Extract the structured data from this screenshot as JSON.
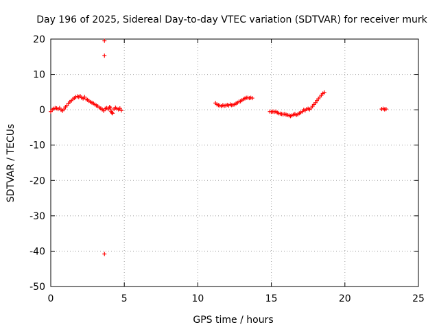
{
  "chart_data": {
    "type": "scatter",
    "title": "Day 196 of 2025, Sidereal Day-to-day VTEC variation (SDTVAR) for receiver murk",
    "xlabel": "GPS time / hours",
    "ylabel": "SDTVAR / TECUs",
    "xlim": [
      0,
      25
    ],
    "ylim": [
      -50,
      20
    ],
    "xticks": [
      0,
      5,
      10,
      15,
      20,
      25
    ],
    "yticks": [
      -50,
      -40,
      -30,
      -20,
      -10,
      0,
      10,
      20
    ],
    "grid": true,
    "marker": "+",
    "series": [
      {
        "name": "SDTVAR",
        "color": "#ff0000",
        "x": [
          0.0,
          0.1,
          0.2,
          0.3,
          0.4,
          0.5,
          0.6,
          0.7,
          0.8,
          0.9,
          1.0,
          1.1,
          1.2,
          1.3,
          1.4,
          1.5,
          1.6,
          1.7,
          1.8,
          1.9,
          2.0,
          2.1,
          2.2,
          2.3,
          2.4,
          2.5,
          2.6,
          2.7,
          2.8,
          2.9,
          3.0,
          3.1,
          3.2,
          3.3,
          3.4,
          3.5,
          3.6,
          3.65,
          3.65,
          3.65,
          3.7,
          3.8,
          3.9,
          4.0,
          4.05,
          4.1,
          4.15,
          4.2,
          4.3,
          4.4,
          4.5,
          4.6,
          4.7,
          4.8,
          11.2,
          11.3,
          11.4,
          11.5,
          11.6,
          11.7,
          11.8,
          11.9,
          12.0,
          12.1,
          12.2,
          12.3,
          12.4,
          12.5,
          12.6,
          12.7,
          12.8,
          12.9,
          13.0,
          13.1,
          13.2,
          13.3,
          13.4,
          13.5,
          13.6,
          13.7,
          14.9,
          15.0,
          15.1,
          15.2,
          15.3,
          15.4,
          15.5,
          15.6,
          15.7,
          15.8,
          15.9,
          16.0,
          16.1,
          16.2,
          16.3,
          16.4,
          16.5,
          16.6,
          16.7,
          16.8,
          16.9,
          17.0,
          17.1,
          17.2,
          17.3,
          17.4,
          17.5,
          17.6,
          17.7,
          17.8,
          17.9,
          18.0,
          18.1,
          18.2,
          18.3,
          18.4,
          18.5,
          18.6,
          22.5,
          22.6,
          22.7,
          22.8
        ],
        "y": [
          -0.5,
          0.0,
          0.3,
          0.5,
          0.4,
          0.2,
          0.5,
          0.0,
          -0.3,
          0.2,
          0.8,
          1.2,
          1.8,
          2.2,
          2.6,
          3.0,
          3.3,
          3.6,
          3.8,
          3.6,
          3.9,
          3.4,
          3.2,
          3.6,
          3.0,
          2.8,
          2.5,
          2.2,
          2.0,
          1.8,
          1.5,
          1.2,
          1.0,
          0.6,
          0.4,
          0.1,
          -0.3,
          19.5,
          15.3,
          -40.8,
          0.3,
          0.5,
          0.2,
          0.8,
          0.5,
          -0.4,
          -0.8,
          -1.0,
          0.2,
          0.6,
          0.3,
          0.1,
          0.4,
          -0.2,
          1.9,
          1.5,
          1.3,
          1.2,
          1.0,
          1.3,
          1.1,
          1.2,
          1.4,
          1.2,
          1.5,
          1.3,
          1.4,
          1.5,
          1.8,
          2.0,
          2.3,
          2.4,
          2.7,
          3.0,
          3.2,
          3.4,
          3.4,
          3.3,
          3.4,
          3.3,
          -0.5,
          -0.6,
          -0.5,
          -0.6,
          -0.5,
          -0.8,
          -1.0,
          -1.1,
          -1.2,
          -1.3,
          -1.2,
          -1.4,
          -1.5,
          -1.6,
          -1.8,
          -1.6,
          -1.4,
          -1.2,
          -1.5,
          -1.3,
          -1.0,
          -0.8,
          -0.5,
          0.0,
          -0.2,
          0.2,
          0.3,
          0.1,
          0.5,
          1.0,
          1.5,
          2.0,
          2.6,
          3.1,
          3.6,
          4.1,
          4.6,
          4.9,
          0.2,
          0.3,
          0.1,
          0.2
        ]
      }
    ]
  }
}
